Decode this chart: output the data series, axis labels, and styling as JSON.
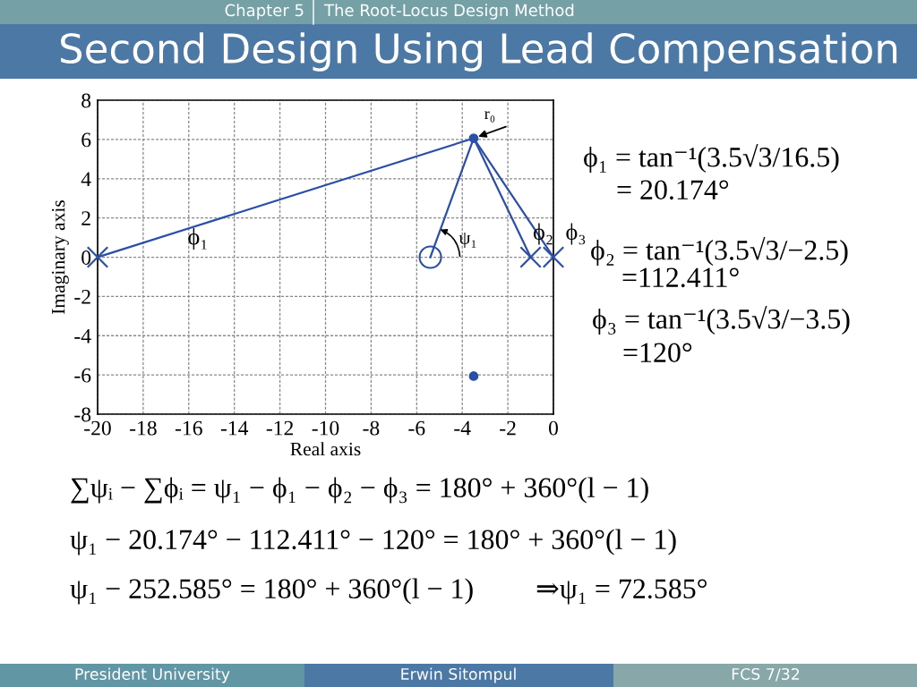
{
  "chart_data": {
    "type": "scatter",
    "title": "Second Design Using Lead Compensation",
    "subtitle": "The Root-Locus Design Method",
    "xlabel": "Real axis",
    "ylabel": "Imaginary axis",
    "series": [
      {
        "type": "line",
        "color": "#2b4fa6",
        "x": [
          -20,
          -3.5
        ],
        "values": [
          0,
          6.06
        ]
      },
      {
        "type": "line",
        "color": "#2b4fa6",
        "x": [
          -5.4,
          -3.5
        ],
        "values": [
          0,
          6.06
        ]
      },
      {
        "type": "line",
        "color": "#2b4fa6",
        "x": [
          -1,
          -3.5
        ],
        "values": [
          0,
          6.06
        ]
      },
      {
        "type": "line",
        "color": "#2b4fa6",
        "x": [
          0,
          -3.5
        ],
        "values": [
          0,
          6.06
        ]
      },
      {
        "color": "#2b4fa6",
        "x": [
          -20,
          -1,
          0
        ],
        "values": [
          0,
          0,
          0
        ],
        "marker": "cross"
      },
      {
        "color": "#2b4fa6",
        "x": [
          -5.4
        ],
        "values": [
          0
        ],
        "marker": "circle"
      },
      {
        "color": "#2b4fa6",
        "x": [
          -3.5,
          -3.5
        ],
        "values": [
          6.06,
          -6.06
        ],
        "marker": "circle"
      }
    ],
    "xlim": [
      -20,
      0
    ],
    "ylim": [
      -8,
      8
    ],
    "xticks": [
      -20,
      -18,
      -16,
      -14,
      -12,
      -10,
      -8,
      -6,
      -4,
      -2,
      0
    ],
    "yticks": [
      -8,
      -6,
      -4,
      -2,
      0,
      2,
      4,
      6,
      8
    ],
    "grid": true,
    "annotations": [
      "Chapter 5",
      "President University",
      "Erwin Sitompul",
      "FCS 7/32",
      "ϕ₁ = tan⁻¹(3.5√3/16.5)",
      "= 20.174°",
      "ϕ₂ = tan⁻¹(3.5√3/−2.5)",
      "=112.411°",
      "ϕ₃ = tan⁻¹(3.5√3/−3.5)",
      "=120°",
      "∑ψᵢ − ∑ϕᵢ = ψ₁ − ϕ₁ − ϕ₂ − ϕ₃ = 180° + 360°(l − 1)",
      "ψ₁ − 20.174° − 112.411° − 120° = 180° + 360°(l − 1)",
      "ψ₁ − 252.585° = 180° + 360°(l − 1)",
      "⇒ψ₁ = 72.585°",
      {
        "text": "r₀",
        "x": -3.5,
        "y": 6.06
      },
      {
        "text": "ϕ₁",
        "x": -15.6,
        "y": 1.62
      },
      {
        "text": "ψ₁",
        "x": -5.4,
        "y": 0
      },
      {
        "text": "ϕ₂",
        "x": -1,
        "y": 0
      },
      {
        "text": "ϕ₃",
        "x": 0,
        "y": 0
      }
    ]
  }
}
